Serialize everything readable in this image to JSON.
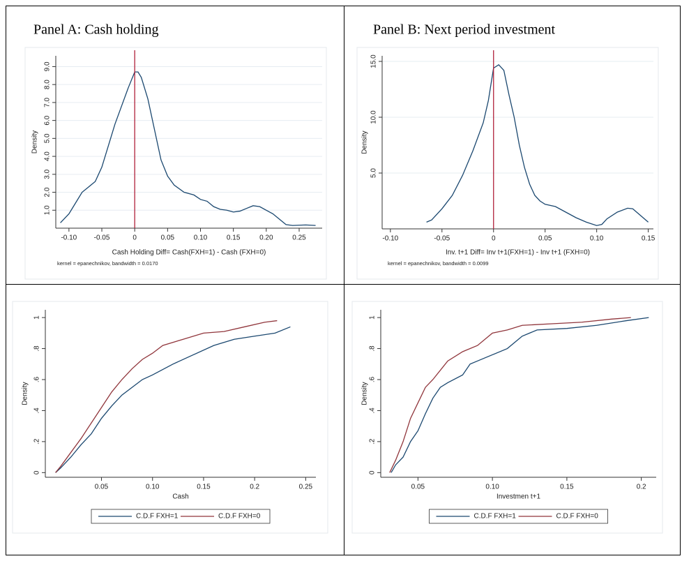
{
  "chart_data": [
    {
      "type": "line",
      "title": "Panel A: Cash holding",
      "ylabel": "Density",
      "xlabel": "Cash Holding Diff= Cash(FXH=1) - Cash (FXH=0)",
      "note": "kernel = epanechnikov, bandwidth = 0.0170",
      "grid": true,
      "vline": 0,
      "vline_color": "#b0203a",
      "xlim": [
        -0.12,
        0.285
      ],
      "ylim": [
        0,
        9.6
      ],
      "xticks": [
        {
          "value": -0.1,
          "label": "-0.10"
        },
        {
          "value": -0.05,
          "label": "-0.05"
        },
        0,
        {
          "value": 0.05,
          "label": "0.05"
        },
        {
          "value": 0.1,
          "label": "0.10"
        },
        {
          "value": 0.15,
          "label": "0.15"
        },
        {
          "value": 0.2,
          "label": "0.20"
        },
        {
          "value": 0.25,
          "label": "0.25"
        }
      ],
      "yticks": [
        {
          "value": 1,
          "label": "1.0"
        },
        {
          "value": 2,
          "label": "2.0"
        },
        {
          "value": 3,
          "label": "3.0"
        },
        {
          "value": 4,
          "label": "4.0"
        },
        {
          "value": 5,
          "label": "5.0"
        },
        {
          "value": 6,
          "label": "6.0"
        },
        {
          "value": 7,
          "label": "7.0"
        },
        {
          "value": 8,
          "label": "8.0"
        },
        {
          "value": 9,
          "label": "9.0"
        }
      ],
      "series": [
        {
          "color": "#1a476f",
          "x": [
            -0.113,
            -0.1,
            -0.09,
            -0.08,
            -0.07,
            -0.06,
            -0.05,
            -0.04,
            -0.03,
            -0.02,
            -0.01,
            0,
            0.005,
            0.01,
            0.02,
            0.03,
            0.04,
            0.05,
            0.06,
            0.075,
            0.09,
            0.1,
            0.11,
            0.12,
            0.13,
            0.14,
            0.15,
            0.16,
            0.17,
            0.18,
            0.19,
            0.2,
            0.21,
            0.22,
            0.23,
            0.24,
            0.26,
            0.275
          ],
          "values": [
            0.3,
            0.8,
            1.4,
            2.0,
            2.3,
            2.6,
            3.4,
            4.6,
            5.8,
            6.8,
            7.8,
            8.7,
            8.7,
            8.4,
            7.2,
            5.5,
            3.8,
            2.9,
            2.4,
            2.0,
            1.85,
            1.6,
            1.5,
            1.2,
            1.05,
            1.0,
            0.9,
            0.95,
            1.1,
            1.25,
            1.2,
            1.0,
            0.8,
            0.5,
            0.2,
            0.15,
            0.18,
            0.15
          ]
        }
      ]
    },
    {
      "type": "line",
      "title": "Panel B: Next period investment",
      "ylabel": "Density",
      "xlabel": "Inv. t+1 Diff= Inv t+1(FXH=1) - Inv t+1 (FXH=0)",
      "note": "kernel = epanechnikov, bandwidth = 0.0099",
      "grid": true,
      "vline": 0,
      "vline_color": "#b0203a",
      "xlim": [
        -0.108,
        0.155
      ],
      "ylim": [
        0,
        15.5
      ],
      "xticks": [
        {
          "value": -0.1,
          "label": "-0.10"
        },
        {
          "value": -0.05,
          "label": "-0.05"
        },
        0,
        {
          "value": 0.05,
          "label": "0.05"
        },
        {
          "value": 0.1,
          "label": "0.10"
        },
        {
          "value": 0.15,
          "label": "0.15"
        }
      ],
      "yticks": [
        {
          "value": 5,
          "label": "5.0"
        },
        {
          "value": 10,
          "label": "10.0"
        },
        {
          "value": 15,
          "label": "15.0"
        }
      ],
      "series": [
        {
          "color": "#1a476f",
          "x": [
            -0.065,
            -0.06,
            -0.05,
            -0.04,
            -0.03,
            -0.02,
            -0.01,
            -0.005,
            0,
            0.005,
            0.01,
            0.015,
            0.02,
            0.025,
            0.03,
            0.035,
            0.04,
            0.045,
            0.05,
            0.06,
            0.07,
            0.08,
            0.09,
            0.1,
            0.105,
            0.11,
            0.12,
            0.13,
            0.135,
            0.14,
            0.15
          ],
          "values": [
            0.6,
            0.8,
            1.8,
            3.0,
            4.8,
            7.0,
            9.5,
            11.5,
            14.4,
            14.7,
            14.2,
            12.0,
            10.0,
            7.5,
            5.5,
            4.0,
            3.0,
            2.5,
            2.2,
            2.0,
            1.5,
            1.0,
            0.6,
            0.3,
            0.4,
            0.9,
            1.5,
            1.85,
            1.8,
            1.4,
            0.6
          ]
        }
      ]
    },
    {
      "type": "line",
      "ylabel": "Density",
      "xlabel": "Cash",
      "grid": false,
      "legend": "bottom",
      "xlim": [
        -0.005,
        0.26
      ],
      "ylim": [
        -0.03,
        1.05
      ],
      "xticks": [
        {
          "value": 0.05,
          "label": "0.05"
        },
        {
          "value": 0.1,
          "label": "0.10"
        },
        {
          "value": 0.15,
          "label": "0.15"
        },
        {
          "value": 0.2,
          "label": "0.2"
        },
        {
          "value": 0.25,
          "label": "0.25"
        }
      ],
      "yticks": [
        0,
        {
          "value": 0.2,
          "label": ".2"
        },
        {
          "value": 0.4,
          "label": ".4"
        },
        {
          "value": 0.6,
          "label": ".6"
        },
        {
          "value": 0.8,
          "label": ".8"
        },
        1
      ],
      "series": [
        {
          "name": "C.D.F FXH=1",
          "color": "#1a476f",
          "x": [
            0.005,
            0.01,
            0.02,
            0.03,
            0.04,
            0.05,
            0.06,
            0.07,
            0.08,
            0.09,
            0.1,
            0.12,
            0.14,
            0.16,
            0.18,
            0.2,
            0.22,
            0.235
          ],
          "values": [
            0,
            0.03,
            0.1,
            0.18,
            0.25,
            0.35,
            0.43,
            0.5,
            0.55,
            0.6,
            0.63,
            0.7,
            0.76,
            0.82,
            0.86,
            0.88,
            0.9,
            0.94
          ]
        },
        {
          "name": "C.D.F FXH=0",
          "color": "#90353b",
          "x": [
            0.005,
            0.01,
            0.02,
            0.03,
            0.04,
            0.05,
            0.06,
            0.07,
            0.08,
            0.09,
            0.1,
            0.11,
            0.13,
            0.15,
            0.17,
            0.19,
            0.21,
            0.222
          ],
          "values": [
            0,
            0.04,
            0.13,
            0.22,
            0.32,
            0.42,
            0.52,
            0.6,
            0.67,
            0.73,
            0.77,
            0.82,
            0.86,
            0.9,
            0.91,
            0.94,
            0.97,
            0.98
          ]
        }
      ]
    },
    {
      "type": "line",
      "ylabel": "Density",
      "xlabel": "Investmen t+1",
      "grid": false,
      "legend": "bottom",
      "xlim": [
        0.025,
        0.21
      ],
      "ylim": [
        -0.03,
        1.05
      ],
      "xticks": [
        {
          "value": 0.05,
          "label": "0.05"
        },
        {
          "value": 0.1,
          "label": "0.10"
        },
        {
          "value": 0.15,
          "label": "0.15"
        },
        {
          "value": 0.2,
          "label": "0.2"
        }
      ],
      "yticks": [
        0,
        {
          "value": 0.2,
          "label": ".2"
        },
        {
          "value": 0.4,
          "label": ".4"
        },
        {
          "value": 0.6,
          "label": ".6"
        },
        {
          "value": 0.8,
          "label": ".8"
        },
        1
      ],
      "series": [
        {
          "name": "C.D.F FXH=1",
          "color": "#1a476f",
          "x": [
            0.032,
            0.035,
            0.04,
            0.045,
            0.05,
            0.055,
            0.06,
            0.065,
            0.07,
            0.08,
            0.085,
            0.09,
            0.1,
            0.11,
            0.12,
            0.13,
            0.15,
            0.17,
            0.19,
            0.205
          ],
          "values": [
            0,
            0.05,
            0.1,
            0.2,
            0.27,
            0.38,
            0.48,
            0.55,
            0.58,
            0.63,
            0.7,
            0.72,
            0.76,
            0.8,
            0.88,
            0.92,
            0.93,
            0.95,
            0.98,
            1.0
          ]
        },
        {
          "name": "C.D.F FXH=0",
          "color": "#90353b",
          "x": [
            0.031,
            0.035,
            0.04,
            0.045,
            0.05,
            0.055,
            0.06,
            0.07,
            0.08,
            0.09,
            0.1,
            0.11,
            0.12,
            0.14,
            0.16,
            0.18,
            0.193
          ],
          "values": [
            0,
            0.08,
            0.2,
            0.35,
            0.45,
            0.55,
            0.6,
            0.72,
            0.78,
            0.82,
            0.9,
            0.92,
            0.95,
            0.96,
            0.97,
            0.99,
            1.0
          ]
        }
      ]
    }
  ]
}
